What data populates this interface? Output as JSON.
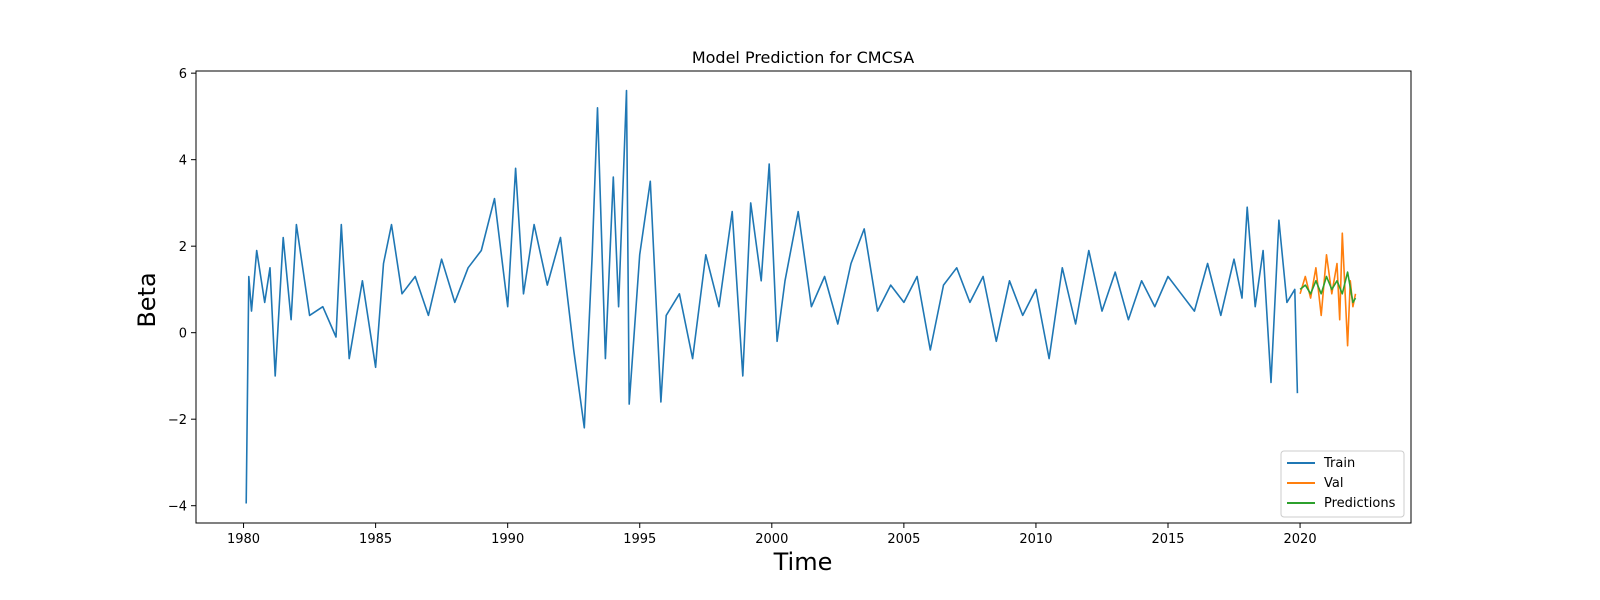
{
  "chart_data": {
    "type": "line",
    "title": "Model Prediction for CMCSA",
    "xlabel": "Time",
    "ylabel": "Beta",
    "xlim": [
      1978.2,
      2024.2
    ],
    "ylim": [
      -4.4,
      6.05
    ],
    "xticks": [
      1980,
      1985,
      1990,
      1995,
      2000,
      2005,
      2010,
      2015,
      2020
    ],
    "yticks": [
      -4,
      -2,
      0,
      2,
      4,
      6
    ],
    "ytick_labels": [
      "−4",
      "−2",
      "0",
      "2",
      "4",
      "6"
    ],
    "grid": false,
    "legend_position": "bottom-right",
    "series": [
      {
        "name": "Train",
        "color": "#1f77b4",
        "x": [
          1980.1,
          1980.2,
          1980.3,
          1980.5,
          1980.8,
          1981.0,
          1981.2,
          1981.5,
          1981.8,
          1982.0,
          1982.5,
          1983.0,
          1983.5,
          1983.7,
          1984.0,
          1984.5,
          1985.0,
          1985.3,
          1985.6,
          1986.0,
          1986.5,
          1987.0,
          1987.5,
          1988.0,
          1988.5,
          1989.0,
          1989.5,
          1990.0,
          1990.3,
          1990.6,
          1991.0,
          1991.5,
          1992.0,
          1992.5,
          1992.9,
          1993.2,
          1993.4,
          1993.7,
          1994.0,
          1994.2,
          1994.5,
          1994.6,
          1995.0,
          1995.4,
          1995.8,
          1996.0,
          1996.5,
          1997.0,
          1997.5,
          1998.0,
          1998.5,
          1998.9,
          1999.2,
          1999.6,
          1999.9,
          2000.2,
          2000.5,
          2001.0,
          2001.5,
          2002.0,
          2002.5,
          2003.0,
          2003.5,
          2004.0,
          2004.5,
          2005.0,
          2005.5,
          2006.0,
          2006.5,
          2007.0,
          2007.5,
          2008.0,
          2008.5,
          2009.0,
          2009.5,
          2010.0,
          2010.5,
          2011.0,
          2011.5,
          2012.0,
          2012.5,
          2013.0,
          2013.5,
          2014.0,
          2014.5,
          2015.0,
          2015.5,
          2016.0,
          2016.5,
          2017.0,
          2017.5,
          2017.8,
          2018.0,
          2018.3,
          2018.6,
          2018.9,
          2019.2,
          2019.5,
          2019.8,
          2019.9
        ],
        "values": [
          -3.95,
          1.3,
          0.5,
          1.9,
          0.7,
          1.5,
          -1.0,
          2.2,
          0.3,
          2.5,
          0.4,
          0.6,
          -0.1,
          2.5,
          -0.6,
          1.2,
          -0.8,
          1.6,
          2.5,
          0.9,
          1.3,
          0.4,
          1.7,
          0.7,
          1.5,
          1.9,
          3.1,
          0.6,
          3.8,
          0.9,
          2.5,
          1.1,
          2.2,
          -0.4,
          -2.2,
          1.8,
          5.2,
          -0.6,
          3.6,
          0.6,
          5.6,
          -1.65,
          1.8,
          3.5,
          -1.6,
          0.4,
          0.9,
          -0.6,
          1.8,
          0.6,
          2.8,
          -1.0,
          3.0,
          1.2,
          3.9,
          -0.2,
          1.2,
          2.8,
          0.6,
          1.3,
          0.2,
          1.6,
          2.4,
          0.5,
          1.1,
          0.7,
          1.3,
          -0.4,
          1.1,
          1.5,
          0.7,
          1.3,
          -0.2,
          1.2,
          0.4,
          1.0,
          -0.6,
          1.5,
          0.2,
          1.9,
          0.5,
          1.4,
          0.3,
          1.2,
          0.6,
          1.3,
          0.9,
          0.5,
          1.6,
          0.4,
          1.7,
          0.8,
          2.9,
          0.6,
          1.9,
          -1.15,
          2.6,
          0.7,
          1.0,
          -1.4
        ]
      },
      {
        "name": "Val",
        "color": "#ff7f0e",
        "x": [
          2020.0,
          2020.2,
          2020.4,
          2020.6,
          2020.8,
          2021.0,
          2021.2,
          2021.4,
          2021.5,
          2021.6,
          2021.8,
          2021.9,
          2022.0,
          2022.1
        ],
        "values": [
          0.9,
          1.3,
          0.8,
          1.5,
          0.4,
          1.8,
          0.9,
          1.6,
          0.3,
          2.3,
          -0.3,
          1.2,
          0.6,
          0.9
        ]
      },
      {
        "name": "Predictions",
        "color": "#2ca02c",
        "x": [
          2020.0,
          2020.2,
          2020.4,
          2020.6,
          2020.8,
          2021.0,
          2021.2,
          2021.4,
          2021.6,
          2021.8,
          2022.0,
          2022.1
        ],
        "values": [
          1.0,
          1.1,
          0.9,
          1.2,
          0.9,
          1.3,
          1.0,
          1.2,
          0.9,
          1.4,
          0.7,
          0.8
        ]
      }
    ]
  }
}
